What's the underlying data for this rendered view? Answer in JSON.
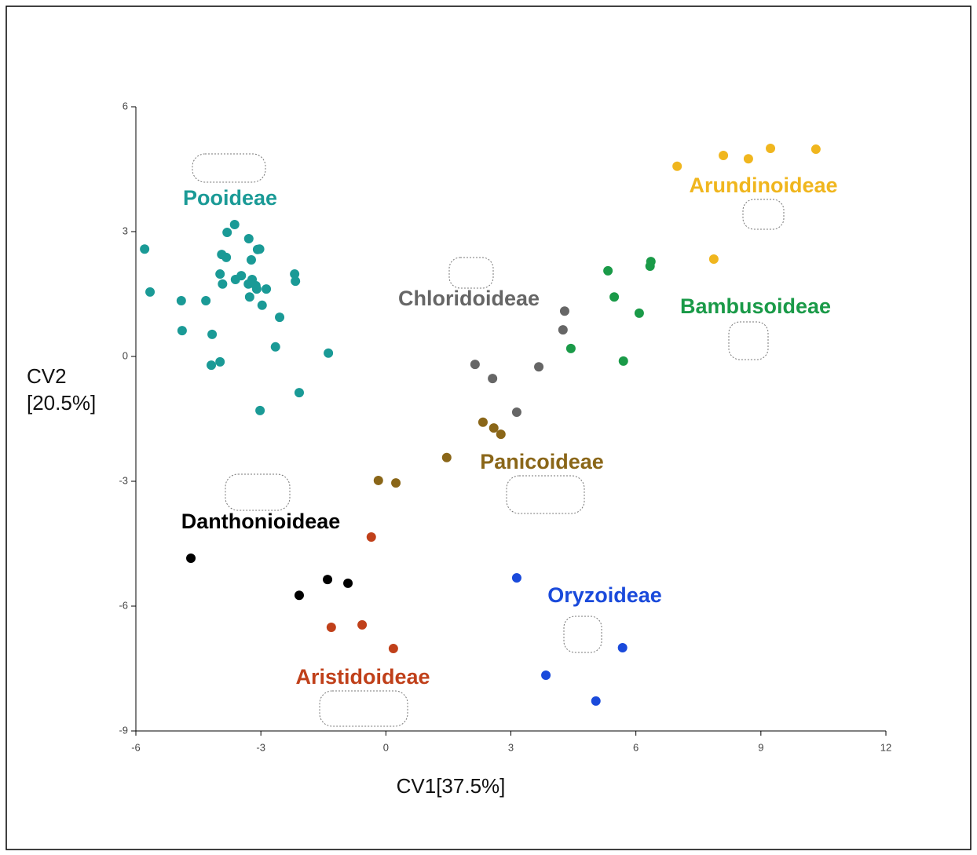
{
  "chart_data": {
    "type": "scatter",
    "x_label": "CV1[37.5%]",
    "y_label": "CV2 [20.5%]",
    "xlim": [
      -6,
      12
    ],
    "xticks": [
      -6,
      -3,
      0,
      3,
      6,
      9,
      12
    ],
    "ylim": [
      -9,
      6
    ],
    "yticks": [
      -9,
      -6,
      -3,
      0,
      3,
      6
    ],
    "series": [
      {
        "name": "Pooideae",
        "color": "#1a9a96",
        "x": [
          -5.79,
          -5.66,
          -4.91,
          -4.89,
          -4.32,
          -4.17,
          -4.19,
          -3.98,
          -3.98,
          -3.94,
          -3.92,
          -3.83,
          -3.81,
          -3.63,
          -3.61,
          -3.47,
          -3.3,
          -3.29,
          -3.23,
          -3.21,
          -3.27,
          -3.12,
          -3.08,
          -3.03,
          -3.1,
          -2.97,
          -2.87,
          -2.55,
          -2.65,
          -2.19,
          -2.17,
          -2.08,
          -3.02,
          -1.38
        ],
        "values": [
          2.58,
          1.55,
          1.34,
          0.62,
          1.34,
          0.53,
          -0.21,
          -0.13,
          1.98,
          2.45,
          1.74,
          2.38,
          2.98,
          3.17,
          1.85,
          1.94,
          1.74,
          2.83,
          2.32,
          1.85,
          1.43,
          1.7,
          2.57,
          2.58,
          1.62,
          1.23,
          1.62,
          0.94,
          0.23,
          1.98,
          1.81,
          -0.87,
          -1.3,
          0.08
        ]
      },
      {
        "name": "Arundinoideae",
        "color": "#f0b61e",
        "x": [
          6.99,
          8.1,
          8.7,
          9.23,
          10.32,
          7.87
        ],
        "values": [
          4.57,
          4.83,
          4.75,
          5.0,
          4.98,
          2.34
        ]
      },
      {
        "name": "Bambusoideae",
        "color": "#1a9a48",
        "x": [
          5.33,
          6.36,
          6.34,
          5.48,
          6.08,
          4.44,
          5.7
        ],
        "values": [
          2.06,
          2.28,
          2.17,
          1.43,
          1.04,
          0.19,
          -0.11
        ]
      },
      {
        "name": "Chloridoideae",
        "color": "#666666",
        "x": [
          4.29,
          4.25,
          2.14,
          2.56,
          3.67,
          3.14
        ],
        "values": [
          1.09,
          0.64,
          -0.19,
          -0.53,
          -0.25,
          -1.34
        ]
      },
      {
        "name": "Panicoideae",
        "color": "#8a6618",
        "x": [
          2.33,
          2.59,
          2.76,
          1.46,
          -0.18,
          0.24
        ],
        "values": [
          -1.58,
          -1.72,
          -1.87,
          -2.43,
          -2.98,
          -3.04
        ]
      },
      {
        "name": "Danthonioideae",
        "color": "#000000",
        "x": [
          -4.68,
          -2.08,
          -1.4,
          -0.91
        ],
        "values": [
          -4.85,
          -5.74,
          -5.36,
          -5.45
        ]
      },
      {
        "name": "Aristidoideae",
        "color": "#c0401a",
        "x": [
          -0.35,
          -1.31,
          -0.57,
          0.18
        ],
        "values": [
          -4.34,
          -6.51,
          -6.45,
          -7.02
        ]
      },
      {
        "name": "Oryzoideae",
        "color": "#1a4adb",
        "x": [
          3.14,
          5.68,
          3.84,
          5.04
        ],
        "values": [
          -5.32,
          -7.0,
          -7.66,
          -8.28
        ]
      }
    ]
  }
}
